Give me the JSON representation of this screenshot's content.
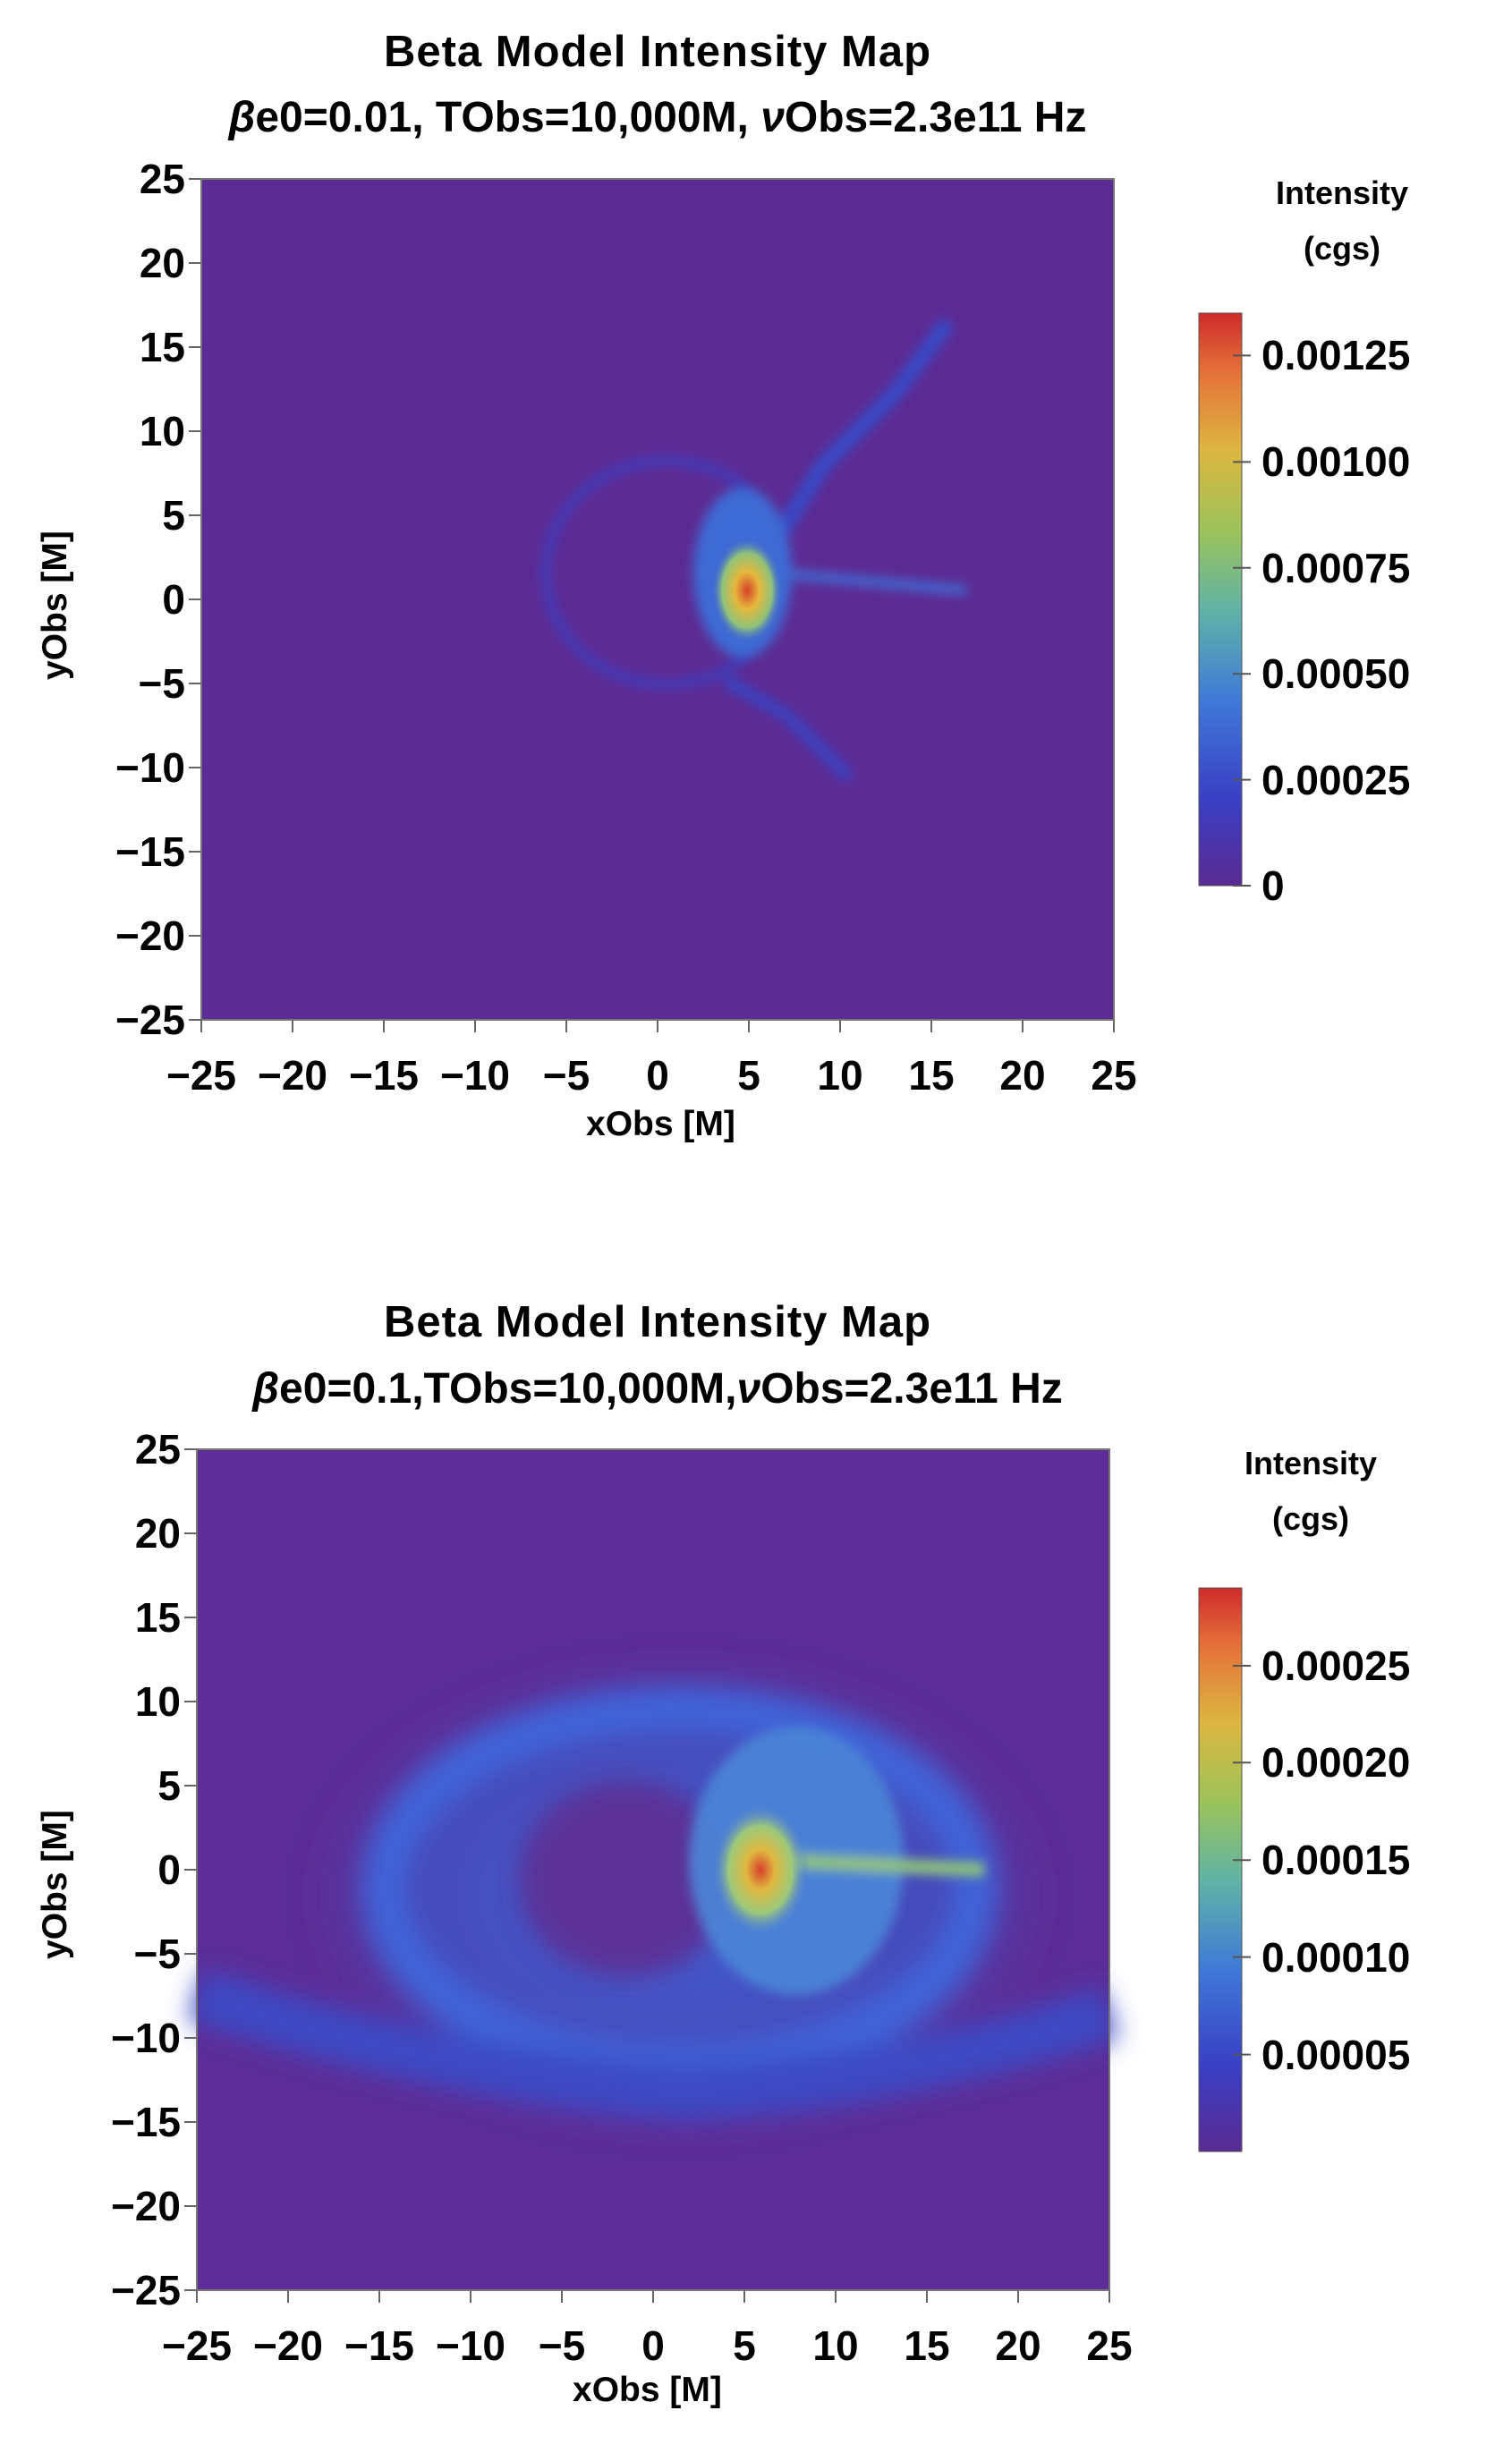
{
  "chart_data": [
    {
      "type": "heatmap",
      "title": "Beta Model Intensity Map",
      "subtitle": {
        "beta": "β",
        "part1": "e0=0.01, TObs=10,000M, ",
        "nu": "ν",
        "part2": "Obs=2.3e11 Hz"
      },
      "xlabel": "xObs [M]",
      "ylabel": "yObs [M]",
      "xlim": [
        -25,
        25
      ],
      "ylim": [
        -25,
        25
      ],
      "xticks": [
        "−25",
        "−20",
        "−15",
        "−10",
        "−5",
        "0",
        "5",
        "10",
        "15",
        "20",
        "25"
      ],
      "yticks": [
        "25",
        "20",
        "15",
        "10",
        "5",
        "0",
        "−5",
        "−10",
        "−15",
        "−20",
        "−25"
      ],
      "colorbar": {
        "title_line1": "Intensity",
        "title_line2": "(cgs)",
        "range": [
          0,
          0.00135
        ],
        "ticks": [
          "0.00125",
          "0.00100",
          "0.00075",
          "0.00050",
          "0.00025",
          "0"
        ]
      }
    },
    {
      "type": "heatmap",
      "title": "Beta Model Intensity Map",
      "subtitle": {
        "beta": "β",
        "part1": "e0=0.1,TObs=10,000M,",
        "nu": "ν",
        "part2": "Obs=2.3e11 Hz"
      },
      "xlabel": "xObs [M]",
      "ylabel": "yObs [M]",
      "xlim": [
        -25,
        25
      ],
      "ylim": [
        -25,
        25
      ],
      "xticks": [
        "−25",
        "−20",
        "−15",
        "−10",
        "−5",
        "0",
        "5",
        "10",
        "15",
        "20",
        "25"
      ],
      "yticks": [
        "25",
        "20",
        "15",
        "10",
        "5",
        "0",
        "−5",
        "−10",
        "−15",
        "−20",
        "−25"
      ],
      "colorbar": {
        "title_line1": "Intensity",
        "title_line2": "(cgs)",
        "range": [
          0,
          0.00029
        ],
        "ticks": [
          "0.00025",
          "0.00020",
          "0.00015",
          "0.00010",
          "0.00005"
        ]
      }
    }
  ]
}
